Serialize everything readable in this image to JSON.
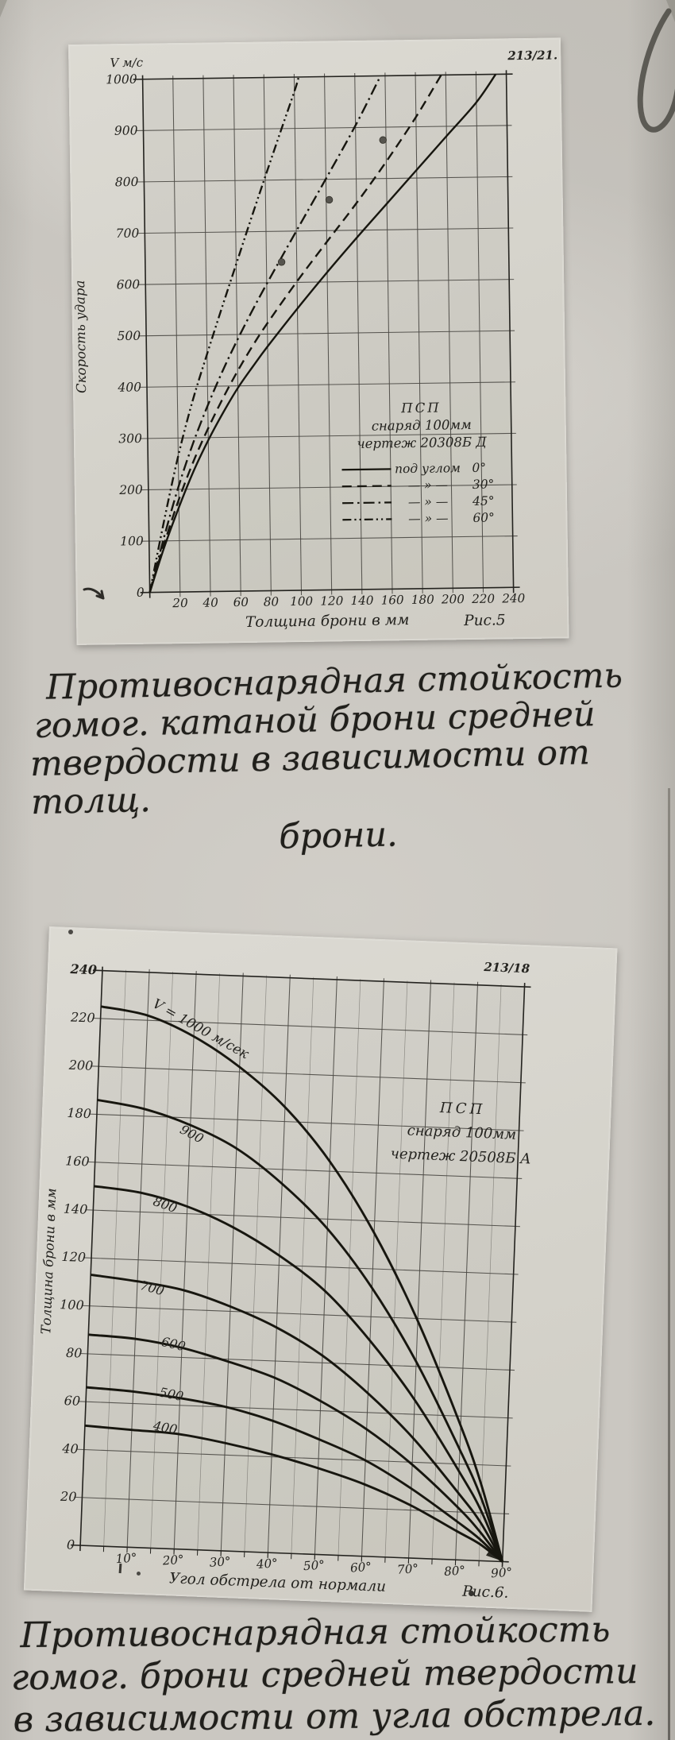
{
  "colors": {
    "ink": "#24231f",
    "curve": "#17160f",
    "grid": "#4b4944",
    "paper": "#cac7c1",
    "photo": "#d6d4cd"
  },
  "captions": {
    "fig5": [
      "Противоснарядная стойкость",
      "гомог. катаной брони средней",
      "твердости в зависимости от толщ.",
      "брони."
    ],
    "fig6": [
      "Противоснарядная стойкость",
      "гомог. брони средней твердости",
      "в зависимости от угла обстрела."
    ]
  },
  "chart_data": [
    {
      "id": "fig5",
      "type": "line",
      "corner_mark": "213/21.",
      "y_unit": "V м/с",
      "ylabel": "Скорость удара",
      "xlabel": "Толщина брони в мм",
      "fig_label": "Рис.5",
      "xlim": [
        0,
        240
      ],
      "ylim": [
        0,
        1000
      ],
      "x_ticks": [
        20,
        40,
        60,
        80,
        100,
        120,
        140,
        160,
        180,
        200,
        220,
        240
      ],
      "y_ticks": [
        0,
        100,
        200,
        300,
        400,
        500,
        600,
        700,
        800,
        900,
        1000
      ],
      "grid": "on",
      "legend": {
        "header": [
          "ПСП",
          "снаряд 100мм",
          "чертеж 20308Б Д"
        ],
        "rows": [
          {
            "style": "solid",
            "text": "под углом",
            "angle": "0°"
          },
          {
            "style": "dashed",
            "text": "— » —",
            "angle": "30°"
          },
          {
            "style": "dashdot",
            "text": "— » —",
            "angle": "45°"
          },
          {
            "style": "dashdotdot",
            "text": "— » —",
            "angle": "60°"
          }
        ]
      },
      "series": [
        {
          "name": "под углом 0°",
          "style": "solid",
          "points": [
            [
              0,
              0
            ],
            [
              10,
              88
            ],
            [
              20,
              165
            ],
            [
              30,
              235
            ],
            [
              40,
              295
            ],
            [
              50,
              348
            ],
            [
              60,
              396
            ],
            [
              70,
              437
            ],
            [
              80,
              476
            ],
            [
              100,
              549
            ],
            [
              120,
              619
            ],
            [
              140,
              686
            ],
            [
              160,
              751
            ],
            [
              180,
              816
            ],
            [
              200,
              881
            ],
            [
              220,
              946
            ],
            [
              233,
              1000
            ]
          ]
        },
        {
          "name": "под углом 30°",
          "style": "dashed",
          "points": [
            [
              0,
              0
            ],
            [
              10,
              95
            ],
            [
              20,
              180
            ],
            [
              30,
              254
            ],
            [
              40,
              318
            ],
            [
              50,
              376
            ],
            [
              60,
              429
            ],
            [
              70,
              477
            ],
            [
              80,
              521
            ],
            [
              100,
              602
            ],
            [
              120,
              678
            ],
            [
              140,
              753
            ],
            [
              160,
              833
            ],
            [
              180,
              919
            ],
            [
              197,
              1000
            ]
          ]
        },
        {
          "name": "под углом 45°",
          "style": "dashdot",
          "points": [
            [
              0,
              0
            ],
            [
              10,
              108
            ],
            [
              20,
              206
            ],
            [
              30,
              290
            ],
            [
              40,
              363
            ],
            [
              50,
              429
            ],
            [
              60,
              489
            ],
            [
              70,
              545
            ],
            [
              80,
              598
            ],
            [
              100,
              700
            ],
            [
              120,
              801
            ],
            [
              140,
              904
            ],
            [
              157,
              1000
            ]
          ]
        },
        {
          "name": "под углом 60°",
          "style": "dashdotdot",
          "points": [
            [
              0,
              0
            ],
            [
              10,
              138
            ],
            [
              20,
              265
            ],
            [
              30,
              372
            ],
            [
              40,
              463
            ],
            [
              50,
              551
            ],
            [
              60,
              637
            ],
            [
              70,
              723
            ],
            [
              80,
              807
            ],
            [
              90,
              890
            ],
            [
              100,
              972
            ],
            [
              103,
              1000
            ]
          ]
        }
      ],
      "markers": [
        [
          90,
          640
        ],
        [
          122,
          760
        ],
        [
          158,
          875
        ]
      ]
    },
    {
      "id": "fig6",
      "type": "line",
      "corner_mark": "213/18",
      "ylabel": "Толщина брони в мм",
      "xlabel": "Угол обстрела от нормали",
      "fig_label": "Рис.6.",
      "xlim": [
        0,
        90
      ],
      "ylim": [
        0,
        240
      ],
      "x_ticks": [
        10,
        20,
        30,
        40,
        50,
        60,
        70,
        80,
        90
      ],
      "x_tick_suffix": "°",
      "x_minor": [
        5,
        15,
        25,
        35,
        45,
        55,
        65,
        75,
        85
      ],
      "y_ticks": [
        0,
        20,
        40,
        60,
        80,
        100,
        120,
        140,
        160,
        180,
        200,
        220,
        240
      ],
      "grid": "on",
      "note": [
        "ПСП",
        "снаряд 100мм",
        "чертеж 20508Б А"
      ],
      "x": [
        0,
        10,
        20,
        30,
        40,
        50,
        60,
        70,
        80,
        85,
        90
      ],
      "series": [
        {
          "name": "V = 1000 м/сек",
          "label": "V = 1000 м/сек",
          "label_at": [
            21,
            214
          ],
          "label_rot": 27,
          "values": [
            225,
            222,
            214,
            202,
            186,
            164,
            135,
            99,
            56,
            31,
            0
          ]
        },
        {
          "name": "900",
          "label": "900",
          "label_at": [
            20,
            170
          ],
          "label_rot": 25,
          "values": [
            186,
            183,
            177,
            168,
            154,
            136,
            112,
            82,
            46,
            26,
            0
          ]
        },
        {
          "name": "800",
          "label": "800",
          "label_at": [
            15,
            140
          ],
          "label_rot": 17,
          "values": [
            150,
            148,
            143,
            135,
            124,
            110,
            90,
            66,
            37,
            21,
            0
          ]
        },
        {
          "name": "700",
          "label": "700",
          "label_at": [
            13,
            105
          ],
          "label_rot": 13,
          "values": [
            113,
            111,
            108,
            102,
            94,
            83,
            68,
            50,
            28,
            16,
            0
          ]
        },
        {
          "name": "600",
          "label": "600",
          "label_at": [
            18,
            82
          ],
          "label_rot": 11,
          "values": [
            88,
            87,
            84,
            79,
            73,
            64,
            53,
            39,
            22,
            12,
            0
          ]
        },
        {
          "name": "500",
          "label": "500",
          "label_at": [
            18,
            61
          ],
          "label_rot": 9,
          "values": [
            66,
            65,
            63,
            60,
            55,
            48,
            40,
            29,
            16,
            9,
            0
          ]
        },
        {
          "name": "400",
          "label": "400",
          "label_at": [
            17,
            47
          ],
          "label_rot": 8,
          "values": [
            50,
            49,
            48,
            45,
            41,
            36,
            30,
            22,
            12,
            7,
            0
          ]
        }
      ]
    }
  ]
}
